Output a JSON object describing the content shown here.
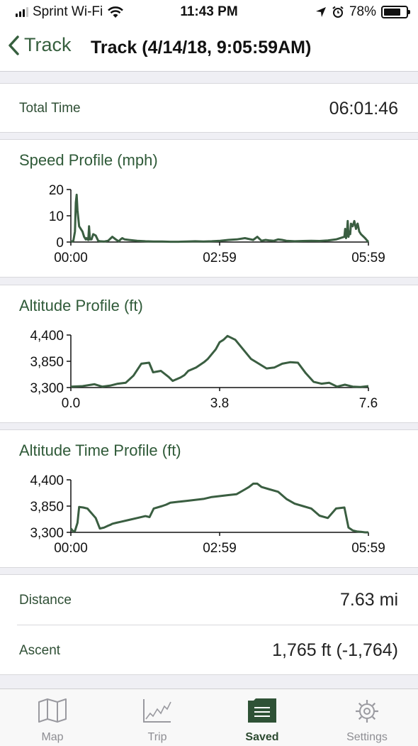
{
  "status_bar": {
    "carrier": "Sprint Wi-Fi",
    "time": "11:43 PM",
    "battery": "78%",
    "battery_level": 0.78
  },
  "nav": {
    "back_label": "Track",
    "title": "Track (4/14/18, 9:05:59AM)"
  },
  "summary": {
    "total_time_label": "Total Time",
    "total_time_value": "06:01:46"
  },
  "speed_profile": {
    "title": "Speed Profile (mph)",
    "y_ticks": [
      "20",
      "10",
      "0"
    ],
    "x_ticks": [
      "00:00",
      "02:59",
      "05:59"
    ]
  },
  "altitude_profile": {
    "title": "Altitude Profile (ft)",
    "y_ticks": [
      "4,400",
      "3,850",
      "3,300"
    ],
    "x_ticks": [
      "0.0",
      "3.8",
      "7.6"
    ]
  },
  "altitude_time_profile": {
    "title": "Altitude Time Profile (ft)",
    "y_ticks": [
      "4,400",
      "3,850",
      "3,300"
    ],
    "x_ticks": [
      "00:00",
      "02:59",
      "05:59"
    ]
  },
  "stats": {
    "distance_label": "Distance",
    "distance_value": "7.63 mi",
    "ascent_label": "Ascent",
    "ascent_value": "1,765 ft (-1,764)"
  },
  "tabs": [
    {
      "label": "Map",
      "icon": "map-icon",
      "active": false
    },
    {
      "label": "Trip",
      "icon": "chart-icon",
      "active": false
    },
    {
      "label": "Saved",
      "icon": "folder-icon",
      "active": true
    },
    {
      "label": "Settings",
      "icon": "gear-icon",
      "active": false
    }
  ],
  "colors": {
    "accent": "#365f3e",
    "line": "#3a5e41"
  },
  "chart_data": [
    {
      "type": "line",
      "title": "Speed Profile (mph)",
      "xlabel": "",
      "ylabel": "",
      "x_ticks": [
        "00:00",
        "02:59",
        "05:59"
      ],
      "xlim": [
        0,
        359
      ],
      "ylim": [
        0,
        20
      ],
      "grid": false,
      "series": [
        {
          "x": [
            0,
            3,
            5,
            6,
            7,
            8,
            10,
            14,
            16,
            18,
            19,
            20,
            21,
            22,
            23,
            25,
            27,
            30,
            33,
            35,
            40,
            45,
            50,
            55,
            58,
            60,
            62,
            65,
            70,
            80,
            90,
            100,
            110,
            120,
            130,
            140,
            150,
            160,
            170,
            180,
            190,
            200,
            210,
            220,
            225,
            230,
            235,
            240,
            245,
            250,
            255,
            260,
            270,
            280,
            290,
            300,
            310,
            320,
            330,
            331,
            332,
            333,
            334,
            335,
            336,
            337,
            338,
            340,
            342,
            344,
            346,
            348,
            350,
            355,
            359
          ],
          "y": [
            0,
            0.5,
            4,
            15,
            18,
            12,
            6,
            4,
            2,
            1,
            1.5,
            1,
            0.8,
            6,
            1,
            1,
            3,
            2.5,
            0.5,
            0.3,
            0.2,
            0.5,
            2,
            0.8,
            0.3,
            1,
            1.5,
            1,
            0.8,
            0.5,
            0.3,
            0.2,
            0.2,
            0.1,
            0.1,
            0.2,
            0.3,
            0.2,
            0.3,
            0.5,
            0.8,
            1,
            1.5,
            0.8,
            2,
            0.5,
            0.8,
            0.6,
            0.5,
            1,
            0.8,
            0.5,
            0.3,
            0.4,
            0.5,
            0.4,
            0.6,
            1,
            2,
            5,
            1.5,
            3,
            8,
            2,
            4,
            3,
            7,
            6,
            8,
            5,
            7,
            4,
            3,
            1.5,
            0
          ]
        }
      ]
    },
    {
      "type": "line",
      "title": "Altitude Profile (ft)",
      "xlabel": "",
      "ylabel": "",
      "x_ticks": [
        "0.0",
        "3.8",
        "7.6"
      ],
      "xlim": [
        0,
        7.6
      ],
      "ylim": [
        3300,
        4400
      ],
      "grid": false,
      "series": [
        {
          "x": [
            0,
            0.3,
            0.6,
            0.8,
            1.0,
            1.2,
            1.4,
            1.6,
            1.8,
            2.0,
            2.1,
            2.3,
            2.5,
            2.6,
            2.8,
            2.9,
            3.0,
            3.2,
            3.4,
            3.5,
            3.6,
            3.7,
            3.8,
            3.9,
            4.0,
            4.2,
            4.4,
            4.6,
            4.8,
            5.0,
            5.2,
            5.4,
            5.6,
            5.8,
            6.0,
            6.2,
            6.4,
            6.6,
            6.8,
            7.0,
            7.2,
            7.4,
            7.6
          ],
          "y": [
            3320,
            3330,
            3370,
            3320,
            3340,
            3380,
            3400,
            3550,
            3800,
            3820,
            3620,
            3650,
            3520,
            3440,
            3510,
            3560,
            3650,
            3720,
            3830,
            3900,
            4000,
            4100,
            4250,
            4300,
            4380,
            4300,
            4100,
            3900,
            3800,
            3700,
            3720,
            3800,
            3830,
            3820,
            3600,
            3420,
            3380,
            3400,
            3320,
            3360,
            3320,
            3310,
            3330
          ]
        }
      ]
    },
    {
      "type": "line",
      "title": "Altitude Time Profile (ft)",
      "xlabel": "",
      "ylabel": "",
      "x_ticks": [
        "00:00",
        "02:59",
        "05:59"
      ],
      "xlim": [
        0,
        359
      ],
      "ylim": [
        3300,
        4400
      ],
      "grid": false,
      "series": [
        {
          "x": [
            0,
            3,
            5,
            8,
            10,
            15,
            20,
            30,
            35,
            40,
            45,
            48,
            50,
            55,
            60,
            70,
            80,
            90,
            95,
            100,
            110,
            115,
            120,
            130,
            140,
            150,
            160,
            170,
            180,
            190,
            200,
            210,
            215,
            220,
            225,
            230,
            240,
            250,
            260,
            270,
            280,
            290,
            300,
            310,
            320,
            330,
            335,
            340,
            345,
            350,
            355,
            359
          ],
          "y": [
            3380,
            3320,
            3330,
            3500,
            3830,
            3820,
            3800,
            3600,
            3380,
            3400,
            3440,
            3460,
            3480,
            3500,
            3520,
            3560,
            3600,
            3640,
            3620,
            3800,
            3850,
            3880,
            3920,
            3940,
            3960,
            3980,
            4000,
            4040,
            4060,
            4080,
            4100,
            4200,
            4250,
            4320,
            4320,
            4250,
            4200,
            4150,
            4000,
            3900,
            3850,
            3800,
            3650,
            3600,
            3800,
            3820,
            3400,
            3340,
            3320,
            3310,
            3300,
            3300
          ]
        }
      ]
    }
  ]
}
